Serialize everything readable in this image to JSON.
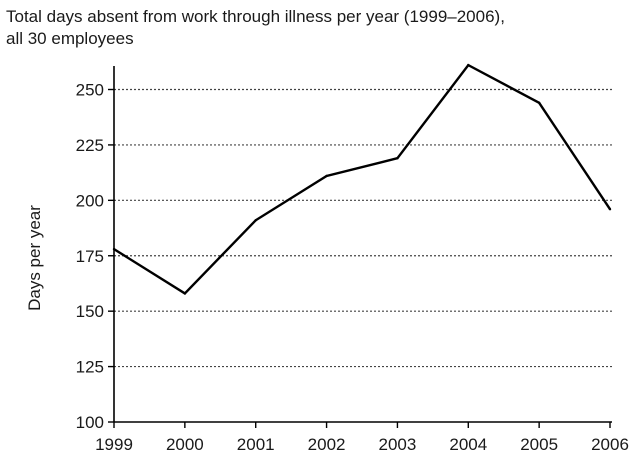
{
  "chart_data": {
    "type": "line",
    "title_lines": [
      "Total days absent from work through illness per year (1999–2006),",
      "all 30 employees"
    ],
    "xlabel": "",
    "ylabel": "Days per year",
    "x": [
      1999,
      2000,
      2001,
      2002,
      2003,
      2004,
      2005,
      2006
    ],
    "x_tick_labels": [
      "1999",
      "2000",
      "2001",
      "2002",
      "2003",
      "2004",
      "2005",
      "2006"
    ],
    "series": [
      {
        "values": [
          178,
          158,
          191,
          211,
          219,
          261,
          244,
          196
        ]
      }
    ],
    "y_ticks": [
      100,
      125,
      150,
      175,
      200,
      225,
      250
    ],
    "y_tick_labels": [
      "100",
      "125",
      "150",
      "175",
      "200",
      "225",
      "250"
    ],
    "ylim": [
      100,
      262
    ],
    "grid": "horizontal dotted",
    "legend": "none",
    "colors": {
      "line": "#000000",
      "grid": "#444444",
      "axis": "#000000"
    }
  }
}
